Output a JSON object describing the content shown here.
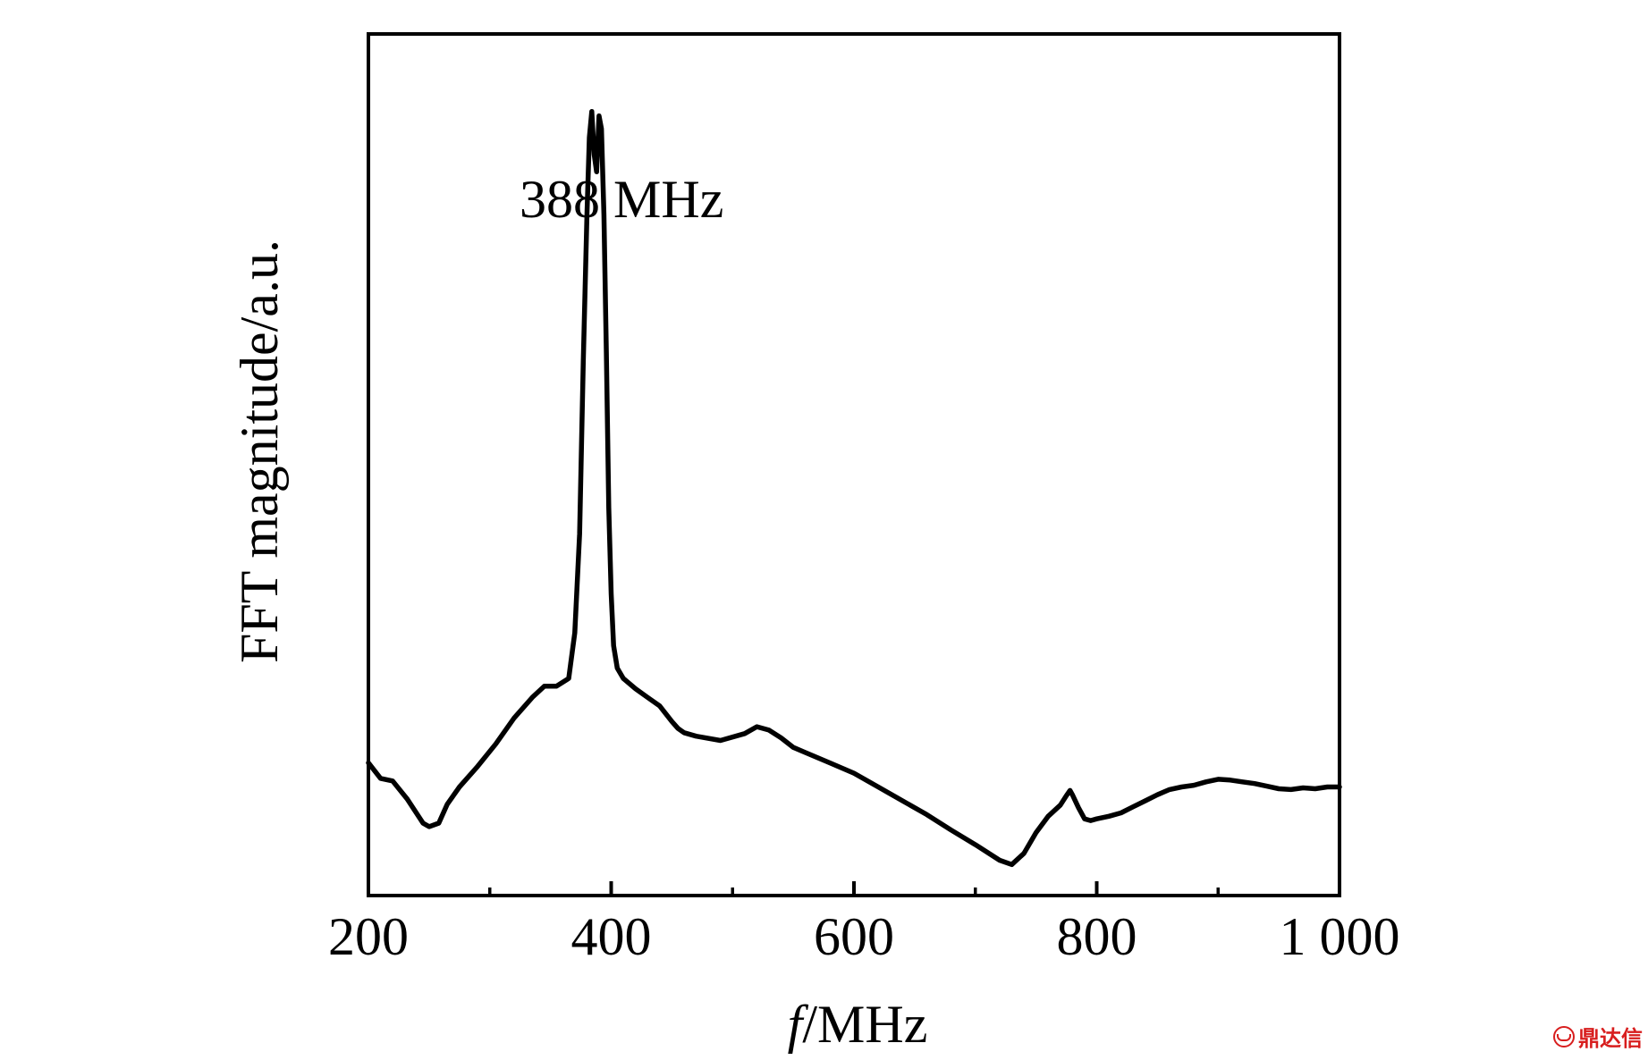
{
  "chart_data": {
    "type": "line",
    "title": "",
    "xlabel_italic": "f",
    "xlabel_rest": "/MHz",
    "ylabel": "FFT magnitude/a.u.",
    "xlim": [
      200,
      1000
    ],
    "ylim": [
      0,
      100
    ],
    "x_ticks_major": [
      200,
      400,
      600,
      800,
      1000
    ],
    "x_tick_labels": [
      "200",
      "400",
      "600",
      "800",
      "1 000"
    ],
    "x_ticks_minor": [
      300,
      500,
      700,
      900
    ],
    "y_tick_labels": [],
    "grid": false,
    "legend": "none",
    "annotation": {
      "text": "388 MHz",
      "x": 388
    },
    "series": [
      {
        "color": "#000000",
        "x": [
          200,
          210,
          220,
          232,
          245,
          250,
          258,
          265,
          275,
          290,
          305,
          320,
          335,
          345,
          355,
          365,
          370,
          374,
          377,
          380,
          382,
          384,
          386,
          388,
          390,
          392,
          394,
          396,
          398,
          400,
          402,
          405,
          410,
          420,
          430,
          440,
          450,
          455,
          460,
          470,
          490,
          510,
          520,
          530,
          540,
          550,
          560,
          580,
          600,
          620,
          640,
          660,
          680,
          700,
          720,
          730,
          740,
          750,
          760,
          770,
          775,
          778,
          780,
          785,
          790,
          795,
          800,
          810,
          820,
          830,
          840,
          850,
          860,
          870,
          880,
          890,
          900,
          910,
          920,
          930,
          940,
          950,
          960,
          970,
          980,
          990,
          1000
        ],
        "y": [
          15.4,
          13.6,
          13.3,
          11.2,
          8.4,
          8.0,
          8.4,
          10.6,
          12.6,
          15.0,
          17.6,
          20.6,
          23.0,
          24.3,
          24.3,
          25.2,
          30.5,
          42.0,
          62.0,
          79.0,
          88.0,
          91.0,
          86.0,
          84.0,
          90.5,
          89.0,
          79.0,
          63.0,
          45.0,
          35.0,
          29.0,
          26.4,
          25.2,
          24.0,
          23.0,
          22.0,
          20.2,
          19.4,
          18.9,
          18.5,
          18.0,
          18.8,
          19.6,
          19.2,
          18.3,
          17.2,
          16.6,
          15.4,
          14.2,
          12.6,
          11.0,
          9.4,
          7.6,
          5.9,
          4.1,
          3.6,
          4.9,
          7.3,
          9.2,
          10.5,
          11.6,
          12.2,
          11.7,
          10.2,
          8.9,
          8.7,
          8.9,
          9.2,
          9.6,
          10.3,
          11.0,
          11.7,
          12.3,
          12.6,
          12.8,
          13.2,
          13.5,
          13.4,
          13.2,
          13.0,
          12.7,
          12.4,
          12.3,
          12.5,
          12.4,
          12.6,
          12.6
        ]
      }
    ]
  },
  "watermark": {
    "text": "鼎达信"
  }
}
